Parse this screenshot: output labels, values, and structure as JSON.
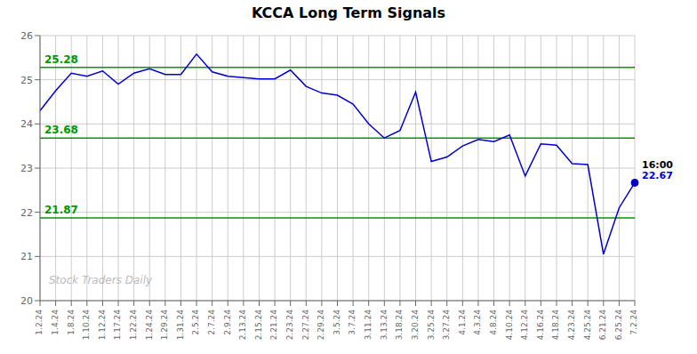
{
  "chart_data": {
    "type": "line",
    "title": "KCCA Long Term Signals",
    "categories": [
      "1.2.24",
      "1.4.24",
      "1.8.24",
      "1.10.24",
      "1.12.24",
      "1.17.24",
      "1.22.24",
      "1.24.24",
      "1.29.24",
      "1.31.24",
      "2.5.24",
      "2.7.24",
      "2.9.24",
      "2.13.24",
      "2.15.24",
      "2.21.24",
      "2.23.24",
      "2.27.24",
      "2.29.24",
      "3.5.24",
      "3.7.24",
      "3.11.24",
      "3.13.24",
      "3.18.24",
      "3.20.24",
      "3.25.24",
      "3.27.24",
      "4.1.24",
      "4.3.24",
      "4.8.24",
      "4.10.24",
      "4.12.24",
      "4.16.24",
      "4.18.24",
      "4.23.24",
      "4.25.24",
      "6.21.24",
      "6.25.24",
      "7.2.24"
    ],
    "values": [
      24.3,
      24.75,
      25.15,
      25.08,
      25.2,
      24.9,
      25.15,
      25.25,
      25.12,
      25.12,
      25.58,
      25.18,
      25.08,
      25.05,
      25.02,
      25.02,
      25.22,
      24.85,
      24.7,
      24.65,
      24.45,
      24.0,
      23.68,
      23.85,
      24.72,
      23.15,
      23.25,
      23.5,
      23.65,
      23.6,
      23.75,
      22.82,
      23.55,
      23.52,
      23.1,
      23.08,
      21.05,
      22.1,
      22.67
    ],
    "color": "#0000cc",
    "marker": "last",
    "ylim": [
      20,
      26
    ],
    "yticks": [
      20,
      21,
      22,
      23,
      24,
      25,
      26
    ],
    "grid": true,
    "hlines": [
      {
        "value": 25.28,
        "label": "25.28",
        "color": "#009900"
      },
      {
        "value": 23.68,
        "label": "23.68",
        "color": "#009900"
      },
      {
        "value": 21.87,
        "label": "21.87",
        "color": "#009900"
      }
    ],
    "annotations": [
      {
        "text": "Stock Traders Daily"
      },
      {
        "text": "16:00",
        "x": "7.2.24",
        "y": 22.67
      },
      {
        "text": "22.67",
        "x": "7.2.24",
        "y": 22.67,
        "color": "#0000cc"
      }
    ]
  }
}
